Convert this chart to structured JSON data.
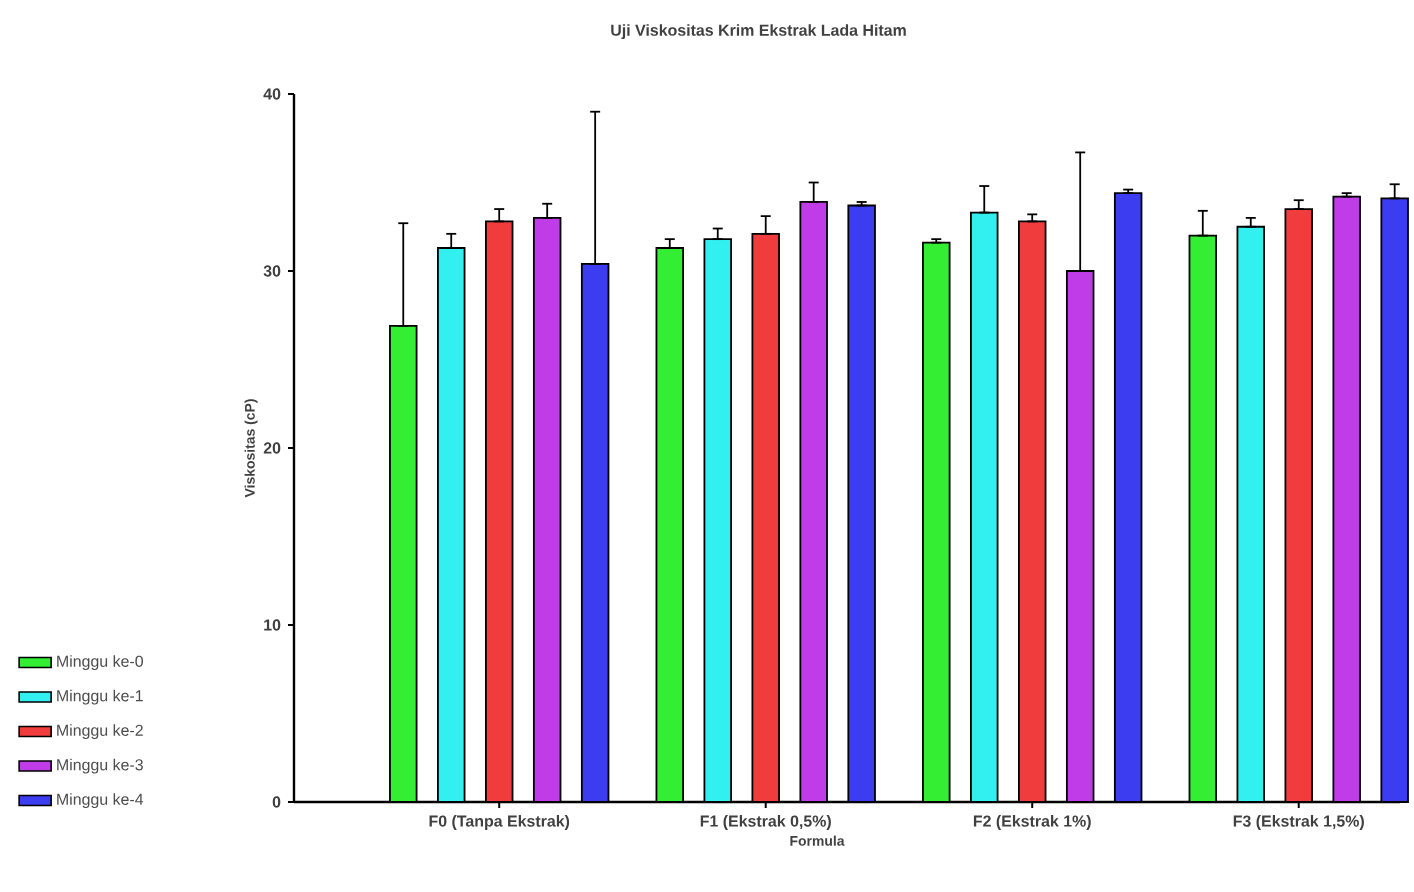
{
  "chart_data": {
    "type": "bar",
    "title": "Uji Viskositas Krim Ekstrak Lada Hitam",
    "xlabel": "Formula",
    "ylabel": "Viskositas (cP)",
    "categories": [
      "F0 (Tanpa Ekstrak)",
      "F1 (Ekstrak 0,5%)",
      "F2 (Ekstrak 1%)",
      "F3 (Ekstrak 1,5%)"
    ],
    "series": [
      {
        "name": "Minggu ke-0",
        "color": "#33ee33",
        "values": [
          26.9,
          31.3,
          31.6,
          32.0
        ],
        "errors": [
          [
            26.9,
            32.7
          ],
          [
            31.3,
            31.8
          ],
          [
            31.6,
            31.8
          ],
          [
            32.0,
            33.4
          ]
        ]
      },
      {
        "name": "Minggu ke-1",
        "color": "#33f0f0",
        "values": [
          31.3,
          31.8,
          33.3,
          32.5
        ],
        "errors": [
          [
            31.3,
            32.1
          ],
          [
            31.8,
            32.4
          ],
          [
            33.3,
            34.8
          ],
          [
            32.5,
            33.0
          ]
        ]
      },
      {
        "name": "Minggu ke-2",
        "color": "#f03c3c",
        "values": [
          32.8,
          32.1,
          32.8,
          33.5
        ],
        "errors": [
          [
            32.8,
            33.5
          ],
          [
            32.1,
            33.1
          ],
          [
            32.8,
            33.2
          ],
          [
            33.5,
            34.0
          ]
        ]
      },
      {
        "name": "Minggu ke-3",
        "color": "#c03ce8",
        "values": [
          33.0,
          33.9,
          30.0,
          34.2
        ],
        "errors": [
          [
            33.0,
            33.8
          ],
          [
            33.9,
            35.0
          ],
          [
            30.0,
            36.7
          ],
          [
            34.2,
            34.4
          ]
        ]
      },
      {
        "name": "Minggu ke-4",
        "color": "#3c3cf0",
        "values": [
          30.4,
          33.7,
          34.4,
          34.1
        ],
        "errors": [
          [
            30.4,
            39.0
          ],
          [
            33.7,
            33.9
          ],
          [
            34.4,
            34.6
          ],
          [
            34.1,
            34.9
          ]
        ]
      }
    ],
    "ylim": [
      0,
      40
    ],
    "yticks": [
      0,
      10,
      20,
      30,
      40
    ],
    "grid": false,
    "legend": "left"
  }
}
